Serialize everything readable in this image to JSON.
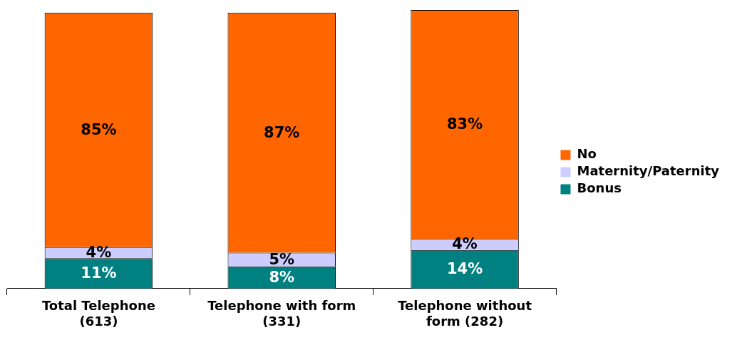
{
  "chart_data": {
    "type": "bar",
    "stacked": true,
    "categories": [
      "Total Telephone\n(613)",
      "Telephone with form\n(331)",
      "Telephone without\nform (282)"
    ],
    "ylim": [
      0,
      101
    ],
    "tick_labels": "x",
    "legend": "right",
    "grid": false,
    "series": [
      {
        "name": "Bonus",
        "color": "#008080",
        "values": [
          11,
          8,
          14
        ],
        "value_labels": [
          "11%",
          "8%",
          "14%"
        ]
      },
      {
        "name": "Maternity/Paternity",
        "color": "#ccccff",
        "values": [
          4,
          5,
          4
        ],
        "value_labels": [
          "4%",
          "5%",
          "4%"
        ]
      },
      {
        "name": "No",
        "color": "#ff6600",
        "values": [
          85,
          87,
          83
        ],
        "value_labels": [
          "85%",
          "87%",
          "83%"
        ]
      }
    ]
  }
}
